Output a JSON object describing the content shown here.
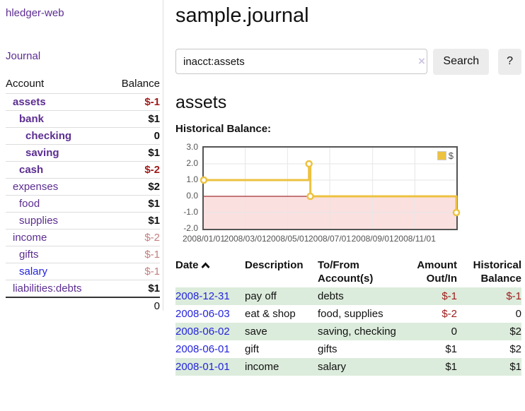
{
  "app": {
    "title": "hledger-web"
  },
  "colors": {
    "accent_purple": "#5c2d91",
    "link_blue": "#2424dd",
    "negative_red": "#9e1a1a",
    "muted_negative_red": "#c17f7f",
    "row_highlight_green": "#dcecdc",
    "chart_line_gold": "#edc240",
    "chart_negative_region_pink": "#fbe0e0",
    "chart_zero_line_dark_red": "#8b0000",
    "button_gray": "#ececec"
  },
  "sidebar": {
    "journal_link": "Journal",
    "accounts_table": {
      "headers": {
        "account": "Account",
        "balance": "Balance"
      },
      "rows": [
        {
          "name": "assets",
          "depth": 0,
          "bold": true,
          "link_color": "purple",
          "balance": "$-1",
          "balance_style": "neg"
        },
        {
          "name": "bank",
          "depth": 1,
          "bold": true,
          "link_color": "purple",
          "balance": "$1",
          "balance_style": ""
        },
        {
          "name": "checking",
          "depth": 2,
          "bold": true,
          "link_color": "purple",
          "balance": "0",
          "balance_style": ""
        },
        {
          "name": "saving",
          "depth": 2,
          "bold": true,
          "link_color": "purple",
          "balance": "$1",
          "balance_style": ""
        },
        {
          "name": "cash",
          "depth": 1,
          "bold": true,
          "link_color": "purple",
          "balance": "$-2",
          "balance_style": "neg"
        },
        {
          "name": "expenses",
          "depth": 0,
          "bold": false,
          "link_color": "purple",
          "balance": "$2",
          "balance_style": ""
        },
        {
          "name": "food",
          "depth": 1,
          "bold": false,
          "link_color": "purple",
          "balance": "$1",
          "balance_style": ""
        },
        {
          "name": "supplies",
          "depth": 1,
          "bold": false,
          "link_color": "purple",
          "balance": "$1",
          "balance_style": ""
        },
        {
          "name": "income",
          "depth": 0,
          "bold": false,
          "link_color": "purple",
          "balance": "$-2",
          "balance_style": "muted-neg"
        },
        {
          "name": "gifts",
          "depth": 1,
          "bold": false,
          "link_color": "purple",
          "balance": "$-1",
          "balance_style": "muted-neg"
        },
        {
          "name": "salary",
          "depth": 1,
          "bold": false,
          "link_color": "blue",
          "balance": "$-1",
          "balance_style": "muted-neg"
        },
        {
          "name": "liabilities:debts",
          "depth": 0,
          "bold": false,
          "link_color": "purple",
          "balance": "$1",
          "balance_style": ""
        }
      ],
      "total": "0"
    }
  },
  "main": {
    "title": "sample.journal",
    "search": {
      "value": "inacct:assets",
      "placeholder": "",
      "clear_icon": "×",
      "search_button": "Search",
      "help_button": "?"
    },
    "account_heading": "assets",
    "chart_heading": "Historical Balance:"
  },
  "chart_data": {
    "type": "line",
    "line_style": "step",
    "title": "Historical Balance:",
    "legend_position": "top-right",
    "grid": true,
    "ylim": [
      -2,
      3
    ],
    "x_range": [
      "2008-01-01",
      "2008-12-31"
    ],
    "y_ticks": [
      {
        "label": "3.0",
        "value": 3
      },
      {
        "label": "2.0",
        "value": 2
      },
      {
        "label": "1.0",
        "value": 1
      },
      {
        "label": "0.0",
        "value": 0
      },
      {
        "label": "-1.0",
        "value": -1
      },
      {
        "label": "-2.0",
        "value": -2
      }
    ],
    "x_ticks": [
      {
        "label": "2008/01/01",
        "date": "2008-01-01"
      },
      {
        "label": "2008/03/01",
        "date": "2008-03-01"
      },
      {
        "label": "2008/05/01",
        "date": "2008-05-01"
      },
      {
        "label": "2008/07/01",
        "date": "2008-07-01"
      },
      {
        "label": "2008/09/01",
        "date": "2008-09-01"
      },
      {
        "label": "2008/11/01",
        "date": "2008-11-01"
      }
    ],
    "series": [
      {
        "name": "$",
        "color": "#edc240",
        "marker_fill": "#ffffff",
        "points": [
          {
            "date": "2008-01-01",
            "value": 1
          },
          {
            "date": "2008-06-01",
            "value": 2
          },
          {
            "date": "2008-06-03",
            "value": 0
          },
          {
            "date": "2008-12-31",
            "value": -1
          }
        ]
      }
    ],
    "negative_region_color": "#fbe0e0",
    "zero_line_color": "#8b0000"
  },
  "register": {
    "headers": {
      "date": "Date",
      "description": "Description",
      "accounts": "To/From Account(s)",
      "amount": "Amount Out/In",
      "balance": "Historical Balance"
    },
    "sort": {
      "column": "date",
      "direction": "ascending"
    },
    "rows": [
      {
        "date": "2008-12-31",
        "description": "pay off",
        "accounts": "debts",
        "amount": "$-1",
        "amount_negative": true,
        "balance": "$-1",
        "balance_negative": true
      },
      {
        "date": "2008-06-03",
        "description": "eat & shop",
        "accounts": "food, supplies",
        "amount": "$-2",
        "amount_negative": true,
        "balance": "0",
        "balance_negative": false
      },
      {
        "date": "2008-06-02",
        "description": "save",
        "accounts": "saving, checking",
        "amount": "0",
        "amount_negative": false,
        "balance": "$2",
        "balance_negative": false
      },
      {
        "date": "2008-06-01",
        "description": "gift",
        "accounts": "gifts",
        "amount": "$1",
        "amount_negative": false,
        "balance": "$2",
        "balance_negative": false
      },
      {
        "date": "2008-01-01",
        "description": "income",
        "accounts": "salary",
        "amount": "$1",
        "amount_negative": false,
        "balance": "$1",
        "balance_negative": false
      }
    ]
  }
}
